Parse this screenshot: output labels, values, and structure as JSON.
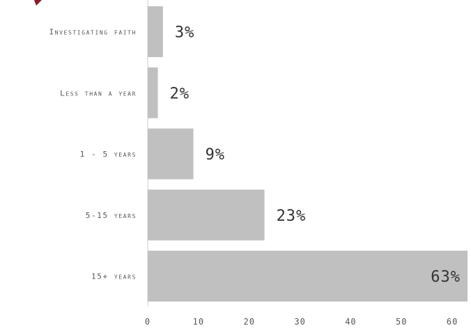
{
  "chart_data": {
    "type": "bar",
    "orientation": "horizontal",
    "categories": [
      "Investigating faith",
      "Less than a year",
      "1 - 5 years",
      "5-15 years",
      "15+ years"
    ],
    "values": [
      3,
      2,
      9,
      23,
      63
    ],
    "value_labels": [
      "3%",
      "2%",
      "9%",
      "23%",
      "63%"
    ],
    "x_ticks": [
      "0",
      "10",
      "20",
      "30",
      "40",
      "50",
      "60"
    ],
    "xlim": [
      0,
      63
    ],
    "grid": false,
    "title": "",
    "xlabel": "",
    "ylabel": ""
  },
  "colors": {
    "bar": "#c0c0c0",
    "axis": "#cfcfcf",
    "accent": "#8b1a2b"
  }
}
